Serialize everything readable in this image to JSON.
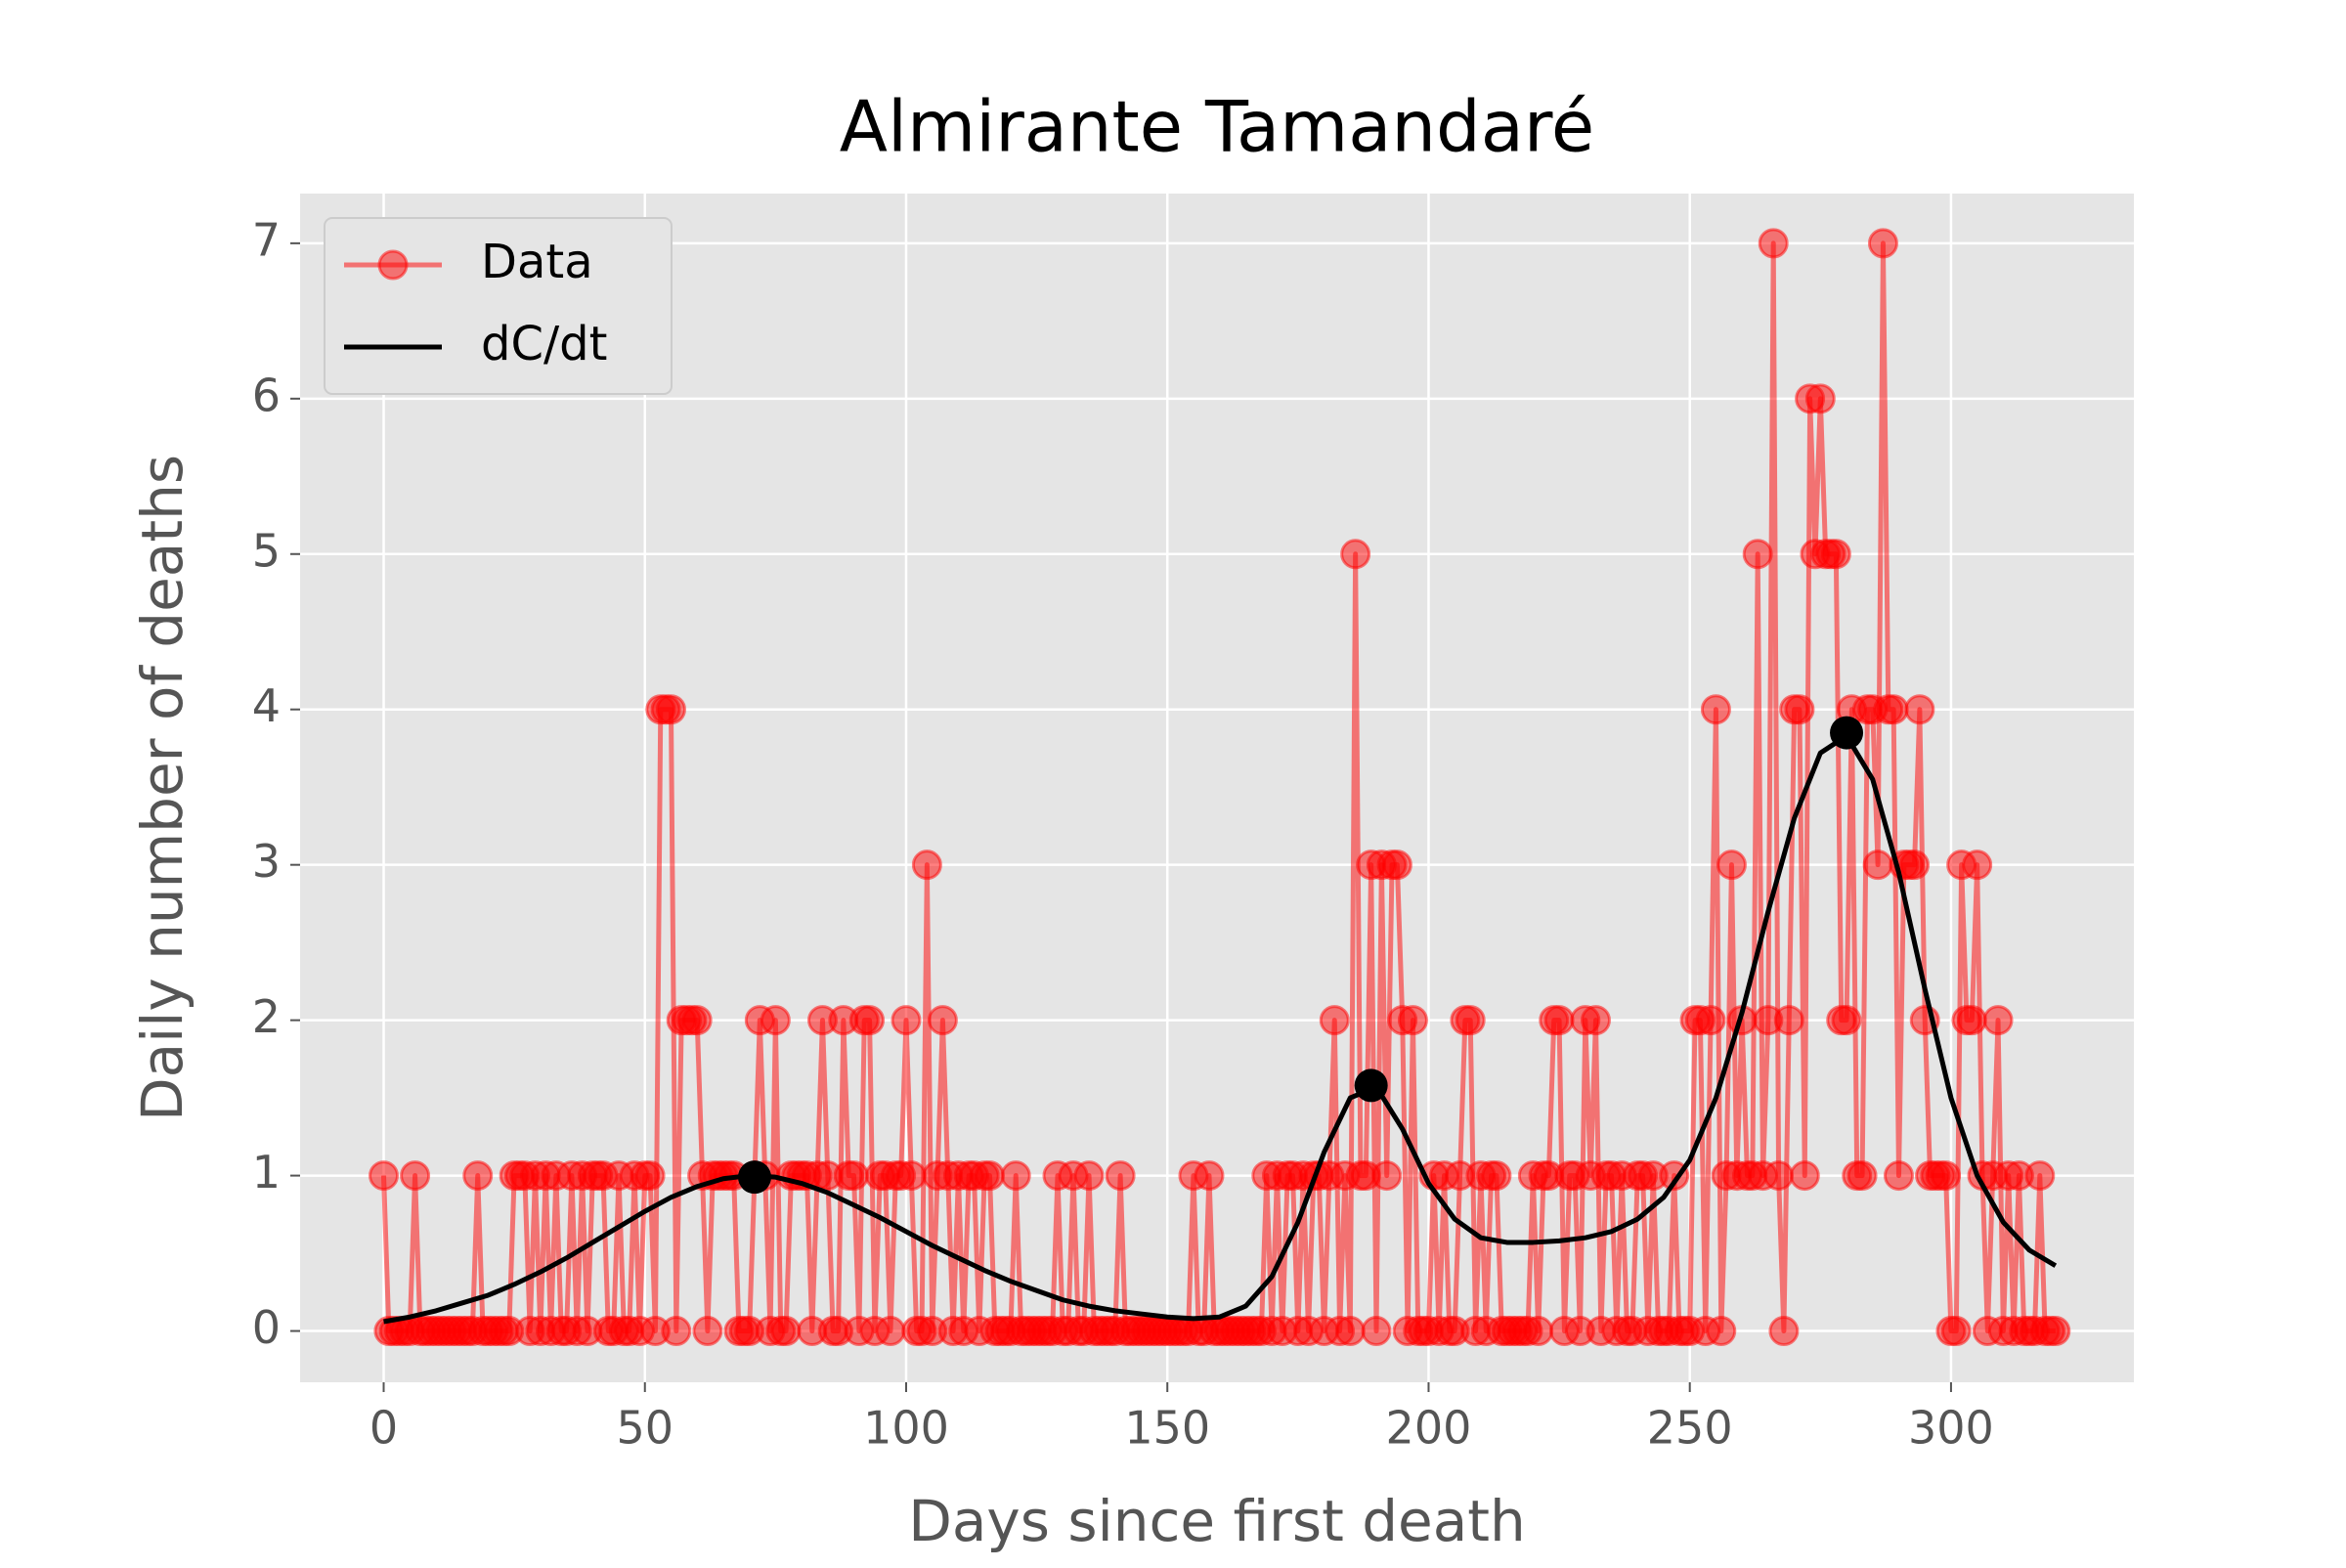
{
  "chart_data": {
    "type": "line",
    "title": "Almirante Tamandaré",
    "x_label": "Days since first death",
    "y_label": "Daily number of deaths",
    "xlim": [
      -16,
      335
    ],
    "ylim": [
      -0.33,
      7.32
    ],
    "xticks": [
      0,
      50,
      100,
      150,
      200,
      250,
      300
    ],
    "yticks": [
      0,
      1,
      2,
      3,
      4,
      5,
      6,
      7
    ],
    "grid": true,
    "legend": "upper left",
    "series": [
      {
        "name": "Data",
        "color": "#ff0000",
        "marker": true,
        "x": [
          0,
          1,
          2,
          3,
          4,
          5,
          6,
          7,
          8,
          9,
          10,
          11,
          12,
          13,
          14,
          15,
          16,
          17,
          18,
          19,
          20,
          21,
          22,
          23,
          24,
          25,
          26,
          27,
          28,
          29,
          30,
          31,
          32,
          33,
          34,
          35,
          36,
          37,
          38,
          39,
          40,
          41,
          42,
          43,
          44,
          45,
          46,
          47,
          48,
          49,
          50,
          51,
          52,
          53,
          54,
          55,
          56,
          57,
          58,
          59,
          60,
          61,
          62,
          63,
          64,
          65,
          66,
          67,
          68,
          69,
          70,
          71,
          72,
          73,
          74,
          75,
          76,
          77,
          78,
          79,
          80,
          81,
          82,
          83,
          84,
          85,
          86,
          87,
          88,
          89,
          90,
          91,
          92,
          93,
          94,
          95,
          96,
          97,
          98,
          99,
          100,
          101,
          102,
          103,
          104,
          105,
          106,
          107,
          108,
          109,
          110,
          111,
          112,
          113,
          114,
          115,
          116,
          117,
          118,
          119,
          120,
          121,
          122,
          123,
          124,
          125,
          126,
          127,
          128,
          129,
          130,
          131,
          132,
          133,
          134,
          135,
          136,
          137,
          138,
          139,
          140,
          141,
          142,
          143,
          144,
          145,
          146,
          147,
          148,
          149,
          150,
          151,
          152,
          153,
          154,
          155,
          156,
          157,
          158,
          159,
          160,
          161,
          162,
          163,
          164,
          165,
          166,
          167,
          168,
          169,
          170,
          171,
          172,
          173,
          174,
          175,
          176,
          177,
          178,
          179,
          180,
          181,
          182,
          183,
          184,
          185,
          186,
          187,
          188,
          189,
          190,
          191,
          192,
          193,
          194,
          195,
          196,
          197,
          198,
          199,
          200,
          201,
          202,
          203,
          204,
          205,
          206,
          207,
          208,
          209,
          210,
          211,
          212,
          213,
          214,
          215,
          216,
          217,
          218,
          219,
          220,
          221,
          222,
          223,
          224,
          225,
          226,
          227,
          228,
          229,
          230,
          231,
          232,
          233,
          234,
          235,
          236,
          237,
          238,
          239,
          240,
          241,
          242,
          243,
          244,
          245,
          246,
          247,
          248,
          249,
          250,
          251,
          252,
          253,
          254,
          255,
          256,
          257,
          258,
          259,
          260,
          261,
          262,
          263,
          264,
          265,
          266,
          267,
          268,
          269,
          270,
          271,
          272,
          273,
          274,
          275,
          276,
          277,
          278,
          279,
          280,
          281,
          282,
          283,
          284,
          285,
          286,
          287,
          288,
          289,
          290,
          291,
          292,
          293,
          294,
          295,
          296,
          297,
          298,
          299,
          300,
          301,
          302,
          303,
          304,
          305,
          306,
          307,
          308,
          309,
          310,
          311,
          312,
          313,
          314,
          315,
          316,
          317,
          318,
          319,
          320
        ],
        "values": [
          1,
          0,
          0,
          0,
          0,
          0,
          1,
          0,
          0,
          0,
          0,
          0,
          0,
          0,
          0,
          0,
          0,
          0,
          1,
          0,
          0,
          0,
          0,
          0,
          0,
          1,
          1,
          1,
          0,
          1,
          0,
          1,
          0,
          1,
          0,
          0,
          1,
          0,
          1,
          0,
          1,
          1,
          1,
          0,
          0,
          1,
          0,
          0,
          1,
          0,
          1,
          1,
          0,
          4,
          4,
          4,
          0,
          2,
          2,
          2,
          2,
          1,
          0,
          1,
          1,
          1,
          1,
          1,
          0,
          0,
          0,
          1,
          2,
          1,
          0,
          2,
          0,
          0,
          1,
          1,
          1,
          1,
          0,
          1,
          2,
          1,
          0,
          0,
          2,
          1,
          1,
          0,
          2,
          2,
          0,
          1,
          1,
          0,
          1,
          1,
          2,
          1,
          0,
          0,
          3,
          0,
          1,
          2,
          1,
          0,
          1,
          0,
          1,
          1,
          0,
          1,
          1,
          0,
          0,
          0,
          0,
          1,
          0,
          0,
          0,
          0,
          0,
          0,
          0,
          1,
          0,
          0,
          1,
          0,
          0,
          1,
          0,
          0,
          0,
          0,
          0,
          1,
          0,
          0,
          0,
          0,
          0,
          0,
          0,
          0,
          0,
          0,
          0,
          0,
          0,
          1,
          0,
          0,
          1,
          0,
          0,
          0,
          0,
          0,
          0,
          0,
          0,
          0,
          0,
          1,
          0,
          1,
          0,
          1,
          1,
          0,
          1,
          0,
          1,
          1,
          0,
          1,
          2,
          0,
          1,
          0,
          5,
          1,
          1,
          3,
          0,
          3,
          1,
          3,
          3,
          2,
          0,
          2,
          0,
          0,
          0,
          1,
          0,
          1,
          0,
          0,
          1,
          2,
          2,
          0,
          1,
          0,
          1,
          1,
          0,
          0,
          0,
          0,
          0,
          0,
          1,
          0,
          1,
          1,
          2,
          2,
          0,
          1,
          1,
          0,
          2,
          1,
          2,
          0,
          1,
          1,
          0,
          1,
          0,
          0,
          1,
          1,
          0,
          1,
          0,
          0,
          0,
          1,
          0,
          0,
          0,
          2,
          2,
          0,
          2,
          4,
          0,
          1,
          3,
          1,
          2,
          1,
          1,
          5,
          1,
          2,
          7,
          1,
          0,
          2,
          4,
          4,
          1,
          6,
          5,
          6,
          5,
          5,
          5,
          2,
          2,
          4,
          1,
          1,
          4,
          4,
          3,
          7,
          4,
          4,
          1,
          3,
          3,
          3,
          4,
          2,
          1,
          1,
          1,
          1,
          0,
          0,
          3,
          2,
          2,
          3,
          1,
          0,
          1,
          2,
          0,
          1,
          0,
          1,
          0,
          0,
          0,
          1,
          0,
          0,
          0
        ]
      },
      {
        "name": "dC/dt",
        "color": "#000000",
        "marker": false,
        "x": [
          0,
          5,
          10,
          15,
          20,
          25,
          30,
          35,
          40,
          45,
          50,
          55,
          60,
          65,
          70,
          75,
          80,
          85,
          90,
          95,
          100,
          105,
          110,
          115,
          120,
          125,
          130,
          135,
          140,
          145,
          150,
          155,
          160,
          165,
          170,
          175,
          180,
          185,
          190,
          195,
          200,
          205,
          210,
          215,
          220,
          225,
          230,
          235,
          240,
          245,
          250,
          255,
          260,
          265,
          270,
          275,
          280,
          285,
          290,
          295,
          300,
          305,
          310,
          315,
          320
        ],
        "values": [
          0.06,
          0.09,
          0.13,
          0.18,
          0.23,
          0.3,
          0.38,
          0.47,
          0.57,
          0.67,
          0.77,
          0.86,
          0.93,
          0.98,
          1.0,
          0.99,
          0.95,
          0.89,
          0.81,
          0.73,
          0.64,
          0.55,
          0.47,
          0.39,
          0.32,
          0.26,
          0.2,
          0.16,
          0.13,
          0.11,
          0.09,
          0.08,
          0.09,
          0.16,
          0.35,
          0.7,
          1.15,
          1.5,
          1.57,
          1.3,
          0.95,
          0.72,
          0.6,
          0.57,
          0.57,
          0.58,
          0.6,
          0.64,
          0.72,
          0.86,
          1.1,
          1.5,
          2.05,
          2.7,
          3.3,
          3.72,
          3.83,
          3.55,
          2.95,
          2.2,
          1.5,
          1.0,
          0.7,
          0.52,
          0.42
        ]
      }
    ],
    "peaks": {
      "color": "#000000",
      "x": [
        71,
        189,
        280
      ],
      "values": [
        0.99,
        1.58,
        3.85
      ]
    }
  }
}
